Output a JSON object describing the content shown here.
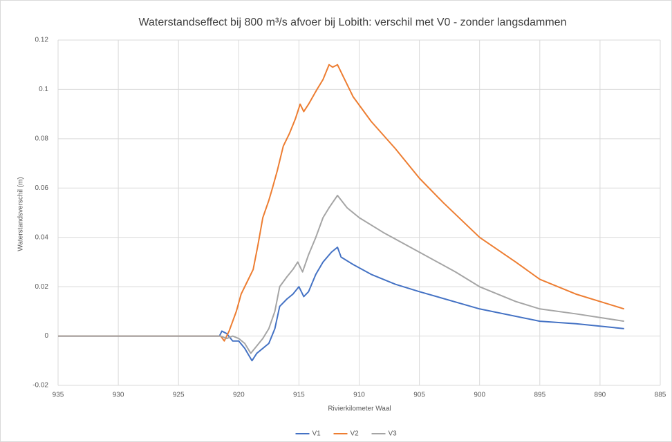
{
  "chart_data": {
    "type": "line",
    "title": "Waterstandseffect bij 800 m³/s afvoer bij Lobith: verschil met V0 - zonder langsdammen",
    "x_label": "Rivierkilometer Waal",
    "y_label": "Waterstandsverschil (m)",
    "xlim": [
      935,
      885
    ],
    "xticks": [
      935,
      930,
      925,
      920,
      915,
      910,
      905,
      900,
      895,
      890,
      885
    ],
    "ylim": [
      -0.02,
      0.12
    ],
    "yticks": [
      -0.02,
      0,
      0.02,
      0.04,
      0.06,
      0.08,
      0.1,
      0.12
    ],
    "grid": true,
    "legend": "bottom",
    "series": [
      {
        "name": "V1",
        "color": "#4472c4",
        "x": [
          935,
          921.6,
          921.4,
          921,
          920.5,
          920,
          919.5,
          918.9,
          918.5,
          918,
          917.5,
          917,
          916.6,
          916,
          915.5,
          915,
          914.6,
          914.2,
          913.6,
          913,
          912.3,
          911.8,
          911.5,
          910.5,
          909,
          907,
          905,
          900,
          895,
          892,
          888
        ],
        "values": [
          0,
          0,
          0.002,
          0.001,
          -0.002,
          -0.002,
          -0.005,
          -0.01,
          -0.007,
          -0.005,
          -0.003,
          0.003,
          0.012,
          0.015,
          0.017,
          0.02,
          0.016,
          0.018,
          0.025,
          0.03,
          0.034,
          0.036,
          0.032,
          0.029,
          0.025,
          0.021,
          0.018,
          0.011,
          0.006,
          0.005,
          0.003
        ]
      },
      {
        "name": "V2",
        "color": "#ed7d31",
        "x": [
          935,
          921.5,
          921.2,
          920.8,
          920.2,
          919.8,
          919.3,
          918.8,
          918.4,
          918,
          917.5,
          917.2,
          916.8,
          916.3,
          915.8,
          915.3,
          914.9,
          914.6,
          914.2,
          913.5,
          913,
          912.5,
          912.2,
          911.8,
          911.2,
          910.5,
          909,
          907,
          905,
          903,
          900,
          897,
          895,
          892,
          888
        ],
        "values": [
          0,
          0,
          -0.002,
          0.002,
          0.01,
          0.017,
          0.022,
          0.027,
          0.037,
          0.048,
          0.055,
          0.06,
          0.067,
          0.077,
          0.082,
          0.088,
          0.094,
          0.091,
          0.094,
          0.1,
          0.104,
          0.11,
          0.109,
          0.11,
          0.104,
          0.097,
          0.087,
          0.076,
          0.064,
          0.054,
          0.04,
          0.03,
          0.023,
          0.017,
          0.011
        ]
      },
      {
        "name": "V3",
        "color": "#a5a5a5",
        "x": [
          935,
          921.5,
          921,
          920.5,
          920,
          919.5,
          919,
          918.5,
          918,
          917.5,
          917,
          916.6,
          916,
          915.5,
          915.1,
          914.7,
          914.2,
          913.6,
          913,
          912.5,
          911.8,
          911,
          910,
          908,
          905,
          902,
          900,
          897,
          895,
          892,
          888
        ],
        "values": [
          0,
          0,
          -0.001,
          0,
          -0.001,
          -0.003,
          -0.007,
          -0.004,
          -0.001,
          0.003,
          0.01,
          0.02,
          0.024,
          0.027,
          0.03,
          0.026,
          0.033,
          0.04,
          0.048,
          0.052,
          0.057,
          0.052,
          0.048,
          0.042,
          0.034,
          0.026,
          0.02,
          0.014,
          0.011,
          0.009,
          0.006
        ]
      }
    ]
  }
}
